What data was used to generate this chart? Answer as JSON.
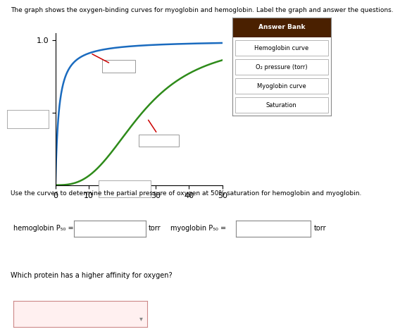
{
  "title": "The graph shows the oxygen-binding curves for myoglobin and hemoglobin. Label the graph and answer the questions.",
  "xlim": [
    0,
    50
  ],
  "ylim": [
    0,
    1.05
  ],
  "xticks": [
    0,
    10,
    20,
    30,
    40,
    50
  ],
  "yticks": [
    0.5,
    1.0
  ],
  "myoglobin_color": "#1a6bbf",
  "hemoglobin_color": "#2e8b1a",
  "arrow_color": "#cc0000",
  "bg_color": "#ffffff",
  "answer_bank_bg": "#4a2000",
  "answer_bank_border": "#888888",
  "answer_bank_title": "Answer Bank",
  "answer_bank_items": [
    "Hemoglobin curve",
    "O₂ pressure (torr)",
    "Myoglobin curve",
    "Saturation"
  ],
  "p50_myo": 1.0,
  "p50_hemo": 26.0,
  "hill_n": 2.8,
  "question1": "Use the curves to determine the partial pressure of oxygen at 50% saturation for hemoglobin and myoglobin.",
  "question2": "Which protein has a higher affinity for oxygen?",
  "hemo_label": "hemoglobin P₅₀ =",
  "myo_label": "myoglobin P₅₀ =",
  "torr": "torr",
  "q2_fill": "#fff0f0"
}
